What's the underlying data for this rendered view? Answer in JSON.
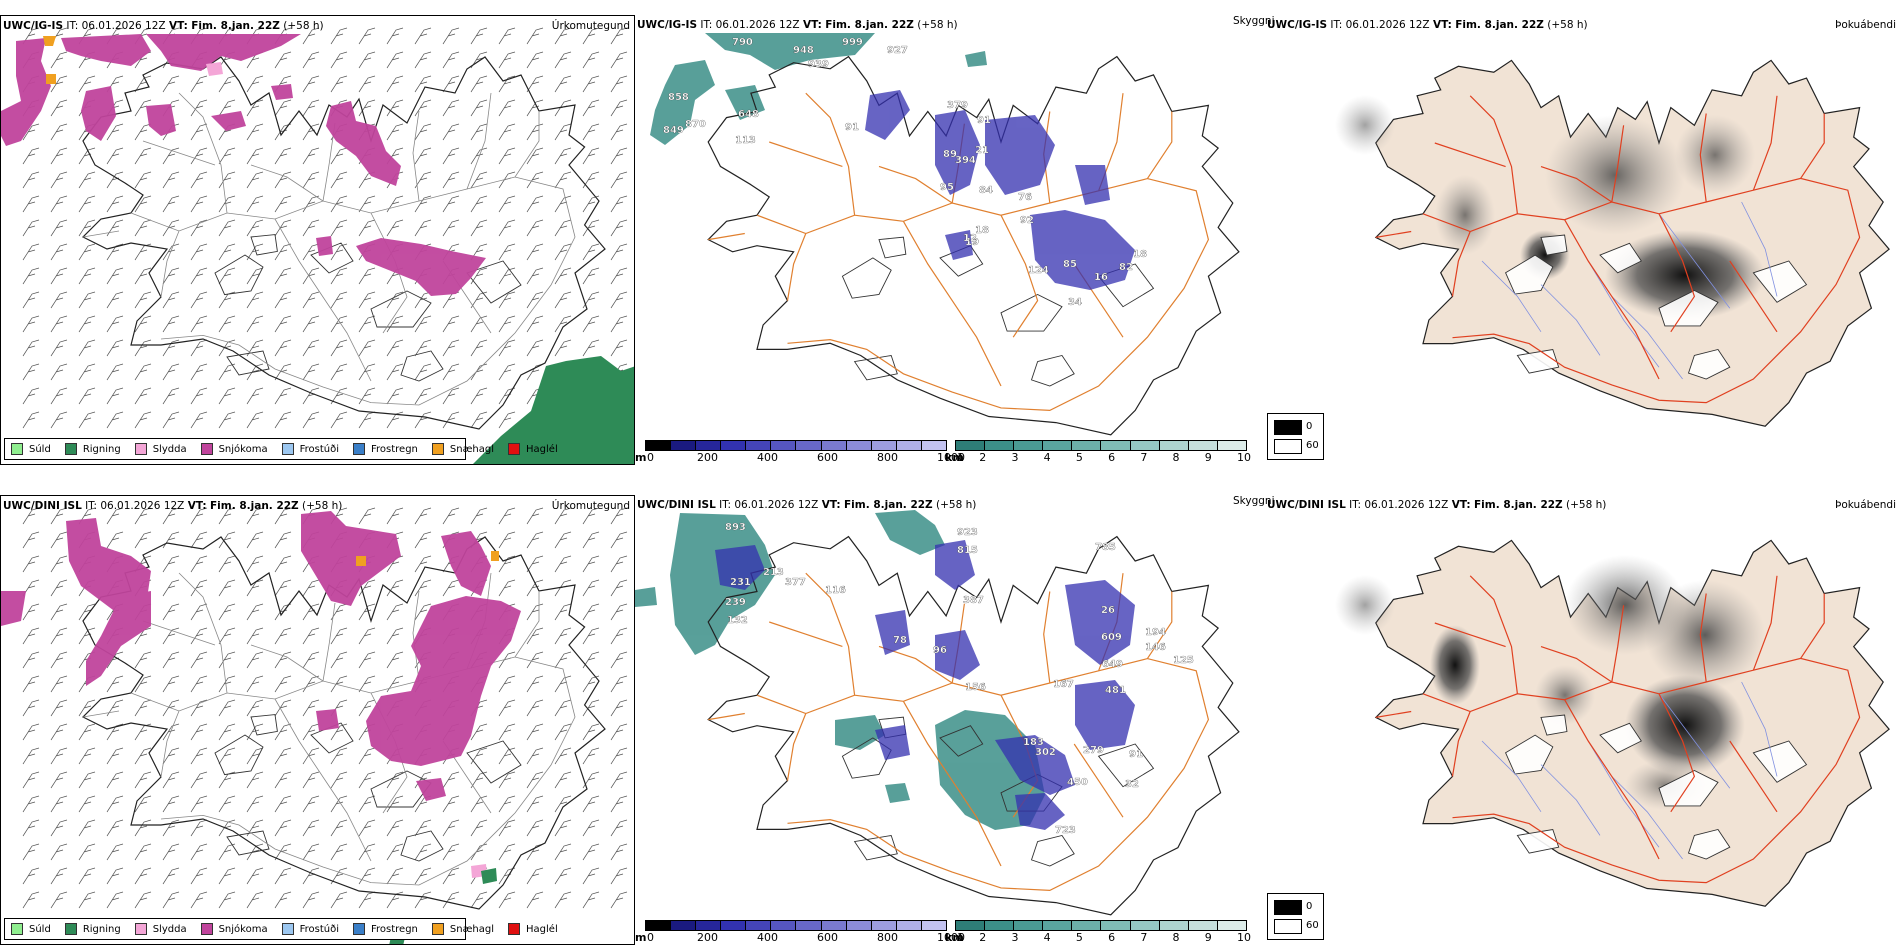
{
  "rows": [
    {
      "precip_title": {
        "model": "UWC/IG-IS",
        "it": "IT: 06.01.2026 12Z",
        "vt_label": "VT:",
        "vt_value": "Fim. 8.jan. 22Z",
        "lead": "(+58 h)"
      },
      "precip_name": "Úrkomutegund",
      "vis_title": {
        "model": "UWC/IG-IS",
        "it": "IT: 06.01.2026 12Z",
        "vt_label": "VT:",
        "vt_value": "Fim. 8.jan. 22Z",
        "lead": "(+58 h)"
      },
      "vis_name": "Skyggni",
      "fog_title": {
        "model": "UWC/IG-IS",
        "it": "IT: 06.01.2026 12Z",
        "vt_label": "VT:",
        "vt_value": "Fim. 8.jan. 22Z",
        "lead": "(+58 h)"
      },
      "fog_name": "Þokuábendi",
      "vis_numbers": [
        "790",
        "948",
        "999",
        "927",
        "858",
        "939",
        "849",
        "870",
        "648",
        "113",
        "91",
        "379",
        "91",
        "89",
        "394",
        "21",
        "95",
        "84",
        "76",
        "18",
        "92",
        "19",
        "12",
        "124",
        "85",
        "34",
        "82",
        "18",
        "16"
      ]
    },
    {
      "precip_title": {
        "model": "UWC/DINI ISL",
        "it": "IT: 06.01.2026 12Z",
        "vt_label": "VT:",
        "vt_value": "Fim. 8.jan. 22Z",
        "lead": "(+58 h)"
      },
      "precip_name": "Úrkomutegund",
      "vis_title": {
        "model": "UWC/DINI ISL",
        "it": "IT: 06.01.2026 12Z",
        "vt_label": "VT:",
        "vt_value": "Fim. 8.jan. 22Z",
        "lead": "(+58 h)"
      },
      "vis_name": "Skyggni",
      "fog_title": {
        "model": "UWC/DINI ISL",
        "it": "IT: 06.01.2026 12Z",
        "vt_label": "VT:",
        "vt_value": "Fim. 8.jan. 22Z",
        "lead": "(+58 h)"
      },
      "fog_name": "Þokuábendi",
      "vis_numbers": [
        "893",
        "923",
        "815",
        "785",
        "231",
        "213",
        "377",
        "116",
        "387",
        "26",
        "239",
        "132",
        "609",
        "194",
        "146",
        "78",
        "96",
        "649",
        "125",
        "156",
        "481",
        "167",
        "183",
        "302",
        "279",
        "91",
        "450",
        "32",
        "723"
      ]
    }
  ],
  "precip_legend": [
    {
      "label": "Súld",
      "color": "#8fee8f"
    },
    {
      "label": "Rigning",
      "color": "#2e8b57"
    },
    {
      "label": "Slydda",
      "color": "#f4a6d7"
    },
    {
      "label": "Snjókoma",
      "color": "#c0449c"
    },
    {
      "label": "Frostúði",
      "color": "#9cc7f0"
    },
    {
      "label": "Frostregn",
      "color": "#3a7fc8"
    },
    {
      "label": "Snæhagl",
      "color": "#f0a020"
    },
    {
      "label": "Haglél",
      "color": "#e01010"
    }
  ],
  "height_bar": {
    "unit": "m",
    "ticks": [
      "0",
      "200",
      "400",
      "600",
      "800",
      "1000"
    ]
  },
  "vis_bar": {
    "unit": "km",
    "ticks": [
      "1",
      "2",
      "3",
      "4",
      "5",
      "6",
      "7",
      "8",
      "9",
      "10"
    ]
  },
  "fog_legend": {
    "dark_label": "0",
    "light_label": "60"
  },
  "colors": {
    "snow": "#c0449c",
    "rain": "#2e8b57",
    "sleet": "#f4a6d7",
    "ice_pellets": "#f0a020",
    "low_vis": "#3c8f88",
    "cloud_base": "#3430b0",
    "roads": "#e08030",
    "fog_land": "#f1e3d5",
    "fog_roads": "#e04020",
    "fog_rivers": "#8090e0"
  }
}
